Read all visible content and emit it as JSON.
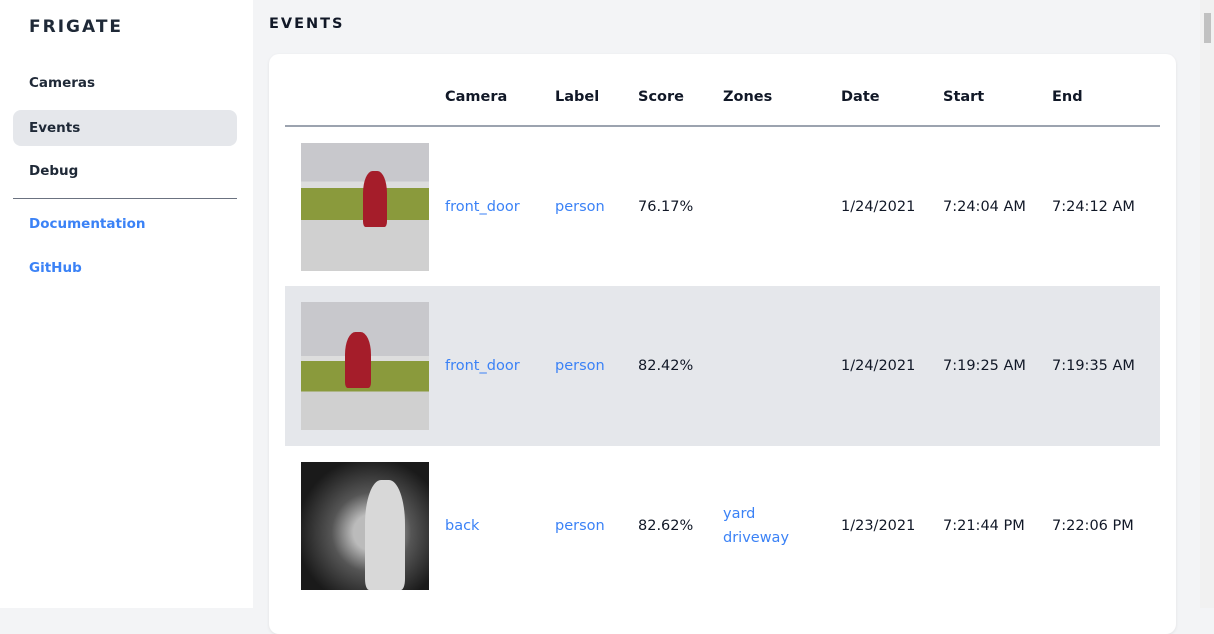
{
  "sidebar": {
    "brand": "FRIGATE",
    "items": [
      {
        "label": "Cameras"
      },
      {
        "label": "Events",
        "active": true
      },
      {
        "label": "Debug"
      }
    ],
    "links": [
      {
        "label": "Documentation"
      },
      {
        "label": "GitHub"
      }
    ]
  },
  "page": {
    "title": "EVENTS"
  },
  "table": {
    "headers": [
      "",
      "Camera",
      "Label",
      "Score",
      "Zones",
      "Date",
      "Start",
      "End"
    ],
    "rows": [
      {
        "camera": "front_door",
        "label": "person",
        "score": "76.17%",
        "zones": [
          "",
          ""
        ],
        "date": "1/24/2021",
        "start": "7:24:04 AM",
        "end": "7:24:12 AM"
      },
      {
        "camera": "front_door",
        "label": "person",
        "score": "82.42%",
        "zones": [
          "",
          ""
        ],
        "date": "1/24/2021",
        "start": "7:19:25 AM",
        "end": "7:19:35 AM"
      },
      {
        "camera": "back",
        "label": "person",
        "score": "82.62%",
        "zones": [
          "yard",
          "driveway"
        ],
        "date": "1/23/2021",
        "start": "7:21:44 PM",
        "end": "7:22:06 PM"
      }
    ]
  },
  "colors": {
    "accent": "#3b82f6",
    "active_bg": "#e5e7eb"
  }
}
